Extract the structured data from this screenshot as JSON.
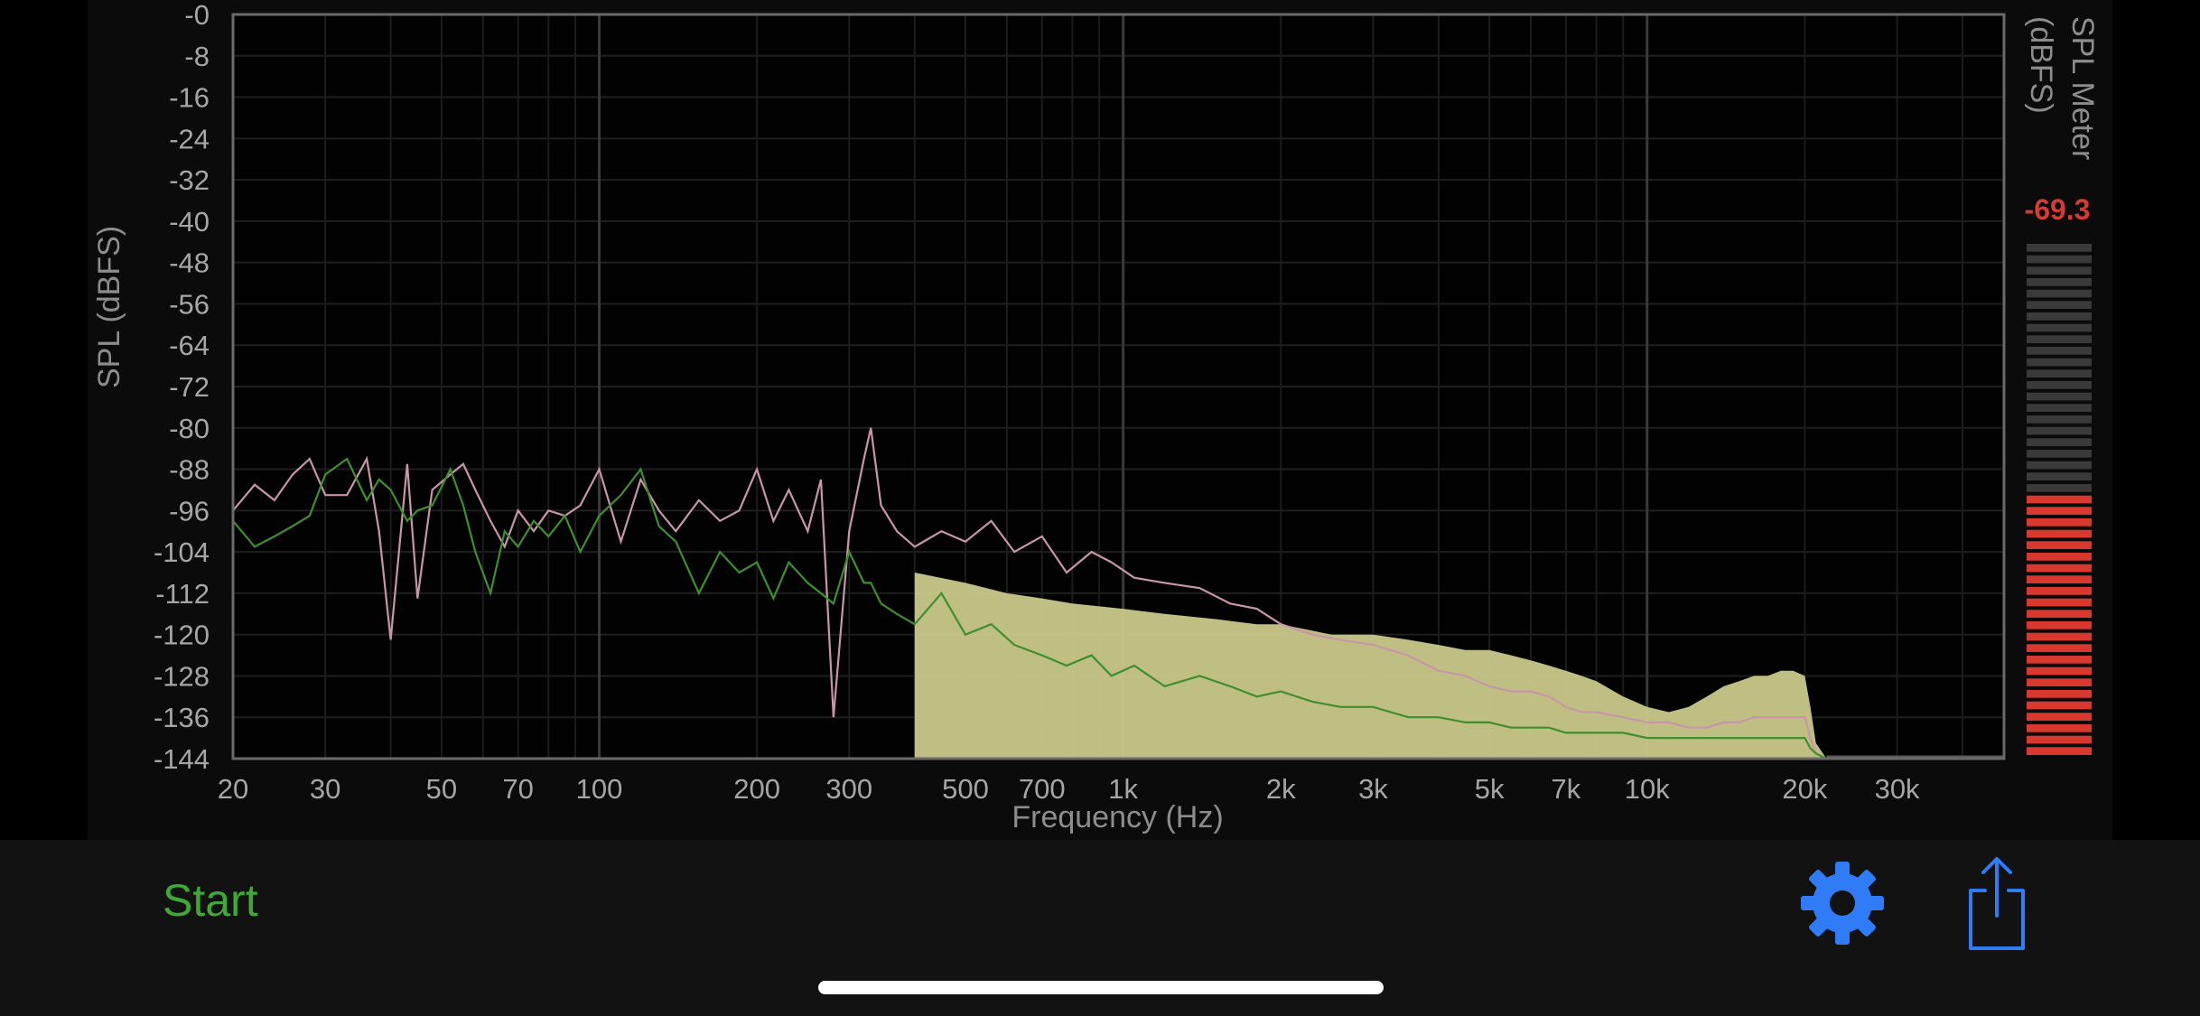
{
  "toolbar": {
    "start_label": "Start",
    "settings_icon": "gear-icon",
    "share_icon": "share-icon",
    "accent_color": "#2f7cf6",
    "start_color": "#3fa836"
  },
  "meter": {
    "title_line1": "SPL Meter",
    "title_line2": "(dBFS)",
    "value": "-69.3",
    "value_color": "#d43c33",
    "level_db": -69.3,
    "active_color": "#d9382f",
    "inactive_color": "#3a3a3a"
  },
  "chart_data": {
    "type": "line",
    "title": "",
    "xlabel": "Frequency (Hz)",
    "ylabel": "SPL (dBFS)",
    "x_scale": "log",
    "xlim": [
      20,
      48000
    ],
    "ylim": [
      -144,
      0
    ],
    "x_ticks": [
      {
        "value": 20,
        "label": "20"
      },
      {
        "value": 30,
        "label": "30"
      },
      {
        "value": 50,
        "label": "50"
      },
      {
        "value": 70,
        "label": "70"
      },
      {
        "value": 100,
        "label": "100"
      },
      {
        "value": 200,
        "label": "200"
      },
      {
        "value": 300,
        "label": "300"
      },
      {
        "value": 500,
        "label": "500"
      },
      {
        "value": 700,
        "label": "700"
      },
      {
        "value": 1000,
        "label": "1k"
      },
      {
        "value": 2000,
        "label": "2k"
      },
      {
        "value": 3000,
        "label": "3k"
      },
      {
        "value": 5000,
        "label": "5k"
      },
      {
        "value": 7000,
        "label": "7k"
      },
      {
        "value": 10000,
        "label": "10k"
      },
      {
        "value": 20000,
        "label": "20k"
      },
      {
        "value": 30000,
        "label": "30k"
      }
    ],
    "y_ticks": [
      {
        "value": 0,
        "label": "-0"
      },
      {
        "value": -8,
        "label": "-8"
      },
      {
        "value": -16,
        "label": "-16"
      },
      {
        "value": -24,
        "label": "-24"
      },
      {
        "value": -32,
        "label": "-32"
      },
      {
        "value": -40,
        "label": "-40"
      },
      {
        "value": -48,
        "label": "-48"
      },
      {
        "value": -56,
        "label": "-56"
      },
      {
        "value": -64,
        "label": "-64"
      },
      {
        "value": -72,
        "label": "-72"
      },
      {
        "value": -80,
        "label": "-80"
      },
      {
        "value": -88,
        "label": "-88"
      },
      {
        "value": -96,
        "label": "-96"
      },
      {
        "value": -104,
        "label": "-104"
      },
      {
        "value": -112,
        "label": "-112"
      },
      {
        "value": -120,
        "label": "-120"
      },
      {
        "value": -128,
        "label": "-128"
      },
      {
        "value": -136,
        "label": "-136"
      },
      {
        "value": -144,
        "label": "-144"
      }
    ],
    "grid": true,
    "fill_color": "#c9c98a",
    "series": [
      {
        "color": "#c896a8",
        "x": [
          20,
          22,
          24,
          26,
          28,
          30,
          33,
          36,
          38,
          40,
          43,
          45,
          48,
          52,
          55,
          58,
          62,
          66,
          70,
          75,
          80,
          86,
          92,
          100,
          110,
          120,
          130,
          140,
          155,
          170,
          185,
          200,
          215,
          230,
          250,
          265,
          280,
          300,
          320,
          330,
          345,
          370,
          400,
          450,
          500,
          560,
          620,
          700,
          780,
          870,
          950,
          1050,
          1200,
          1400,
          1600,
          1800,
          2000,
          2300,
          2600,
          3000,
          3500,
          4000,
          4500,
          5000,
          5500,
          6000,
          6500,
          7000,
          7500,
          8000,
          9000,
          10000,
          11000,
          12000,
          13000,
          14000,
          15000,
          16000,
          17000,
          18000,
          19000,
          20000,
          20500,
          21000,
          22000,
          25000,
          30000,
          40000,
          48000
        ],
        "y": [
          -96,
          -91,
          -94,
          -89,
          -86,
          -93,
          -93,
          -86,
          -100,
          -121,
          -87,
          -113,
          -92,
          -89,
          -87,
          -92,
          -98,
          -103,
          -96,
          -100,
          -96,
          -97,
          -95,
          -88,
          -102,
          -90,
          -96,
          -100,
          -94,
          -98,
          -96,
          -88,
          -98,
          -92,
          -100,
          -90,
          -136,
          -100,
          -86,
          -80,
          -95,
          -100,
          -103,
          -100,
          -102,
          -98,
          -104,
          -101,
          -108,
          -104,
          -106,
          -109,
          -110,
          -111,
          -114,
          -115,
          -118,
          -120,
          -121,
          -122,
          -124,
          -127,
          -128,
          -130,
          -131,
          -131,
          -132,
          -134,
          -135,
          -135,
          -136,
          -137,
          -137,
          -138,
          -138,
          -137,
          -137,
          -136,
          -136,
          -136,
          -136,
          -136,
          -140,
          -143,
          -144,
          -144,
          -144,
          -144,
          -144
        ]
      },
      {
        "color": "#3f8f2f",
        "x": [
          20,
          22,
          24,
          26,
          28,
          30,
          33,
          36,
          38,
          40,
          43,
          45,
          48,
          52,
          55,
          58,
          62,
          66,
          70,
          75,
          80,
          86,
          92,
          100,
          110,
          120,
          130,
          140,
          155,
          170,
          185,
          200,
          215,
          230,
          250,
          265,
          280,
          300,
          320,
          330,
          345,
          370,
          400,
          450,
          500,
          560,
          620,
          700,
          780,
          870,
          950,
          1050,
          1200,
          1400,
          1600,
          1800,
          2000,
          2300,
          2600,
          3000,
          3500,
          4000,
          4500,
          5000,
          5500,
          6000,
          6500,
          7000,
          7500,
          8000,
          9000,
          10000,
          11000,
          12000,
          13000,
          14000,
          15000,
          16000,
          17000,
          18000,
          19000,
          20000,
          20500,
          21000,
          22000,
          25000,
          30000,
          40000,
          48000
        ],
        "y": [
          -98,
          -103,
          -101,
          -99,
          -97,
          -89,
          -86,
          -94,
          -90,
          -92,
          -98,
          -96,
          -95,
          -88,
          -95,
          -104,
          -112,
          -100,
          -103,
          -98,
          -101,
          -97,
          -104,
          -97,
          -93,
          -88,
          -99,
          -102,
          -112,
          -104,
          -108,
          -106,
          -113,
          -106,
          -110,
          -112,
          -114,
          -104,
          -110,
          -110,
          -114,
          -116,
          -118,
          -112,
          -120,
          -118,
          -122,
          -124,
          -126,
          -124,
          -128,
          -126,
          -130,
          -128,
          -130,
          -132,
          -131,
          -133,
          -134,
          -134,
          -136,
          -136,
          -137,
          -137,
          -138,
          -138,
          -138,
          -139,
          -139,
          -139,
          -139,
          -140,
          -140,
          -140,
          -140,
          -140,
          -140,
          -140,
          -140,
          -140,
          -140,
          -140,
          -142,
          -143,
          -144,
          -144,
          -144,
          -144,
          -144
        ]
      },
      {
        "color": "#c9c98a",
        "x": [
          400,
          500,
          600,
          700,
          800,
          1000,
          1200,
          1500,
          1800,
          2000,
          2500,
          3000,
          3500,
          4000,
          4500,
          5000,
          5500,
          6000,
          6500,
          7000,
          7500,
          8000,
          9000,
          10000,
          11000,
          12000,
          13000,
          14000,
          15000,
          16000,
          17000,
          18000,
          19000,
          20000,
          20500,
          21000,
          22000
        ],
        "y": [
          -108,
          -110,
          -112,
          -113,
          -114,
          -115,
          -116,
          -117,
          -118,
          -118,
          -120,
          -120,
          -121,
          -122,
          -123,
          -123,
          -124,
          -125,
          -126,
          -127,
          -128,
          -129,
          -132,
          -134,
          -135,
          -134,
          -132,
          -130,
          -129,
          -128,
          -128,
          -127,
          -127,
          -128,
          -134,
          -141,
          -144
        ]
      }
    ]
  }
}
